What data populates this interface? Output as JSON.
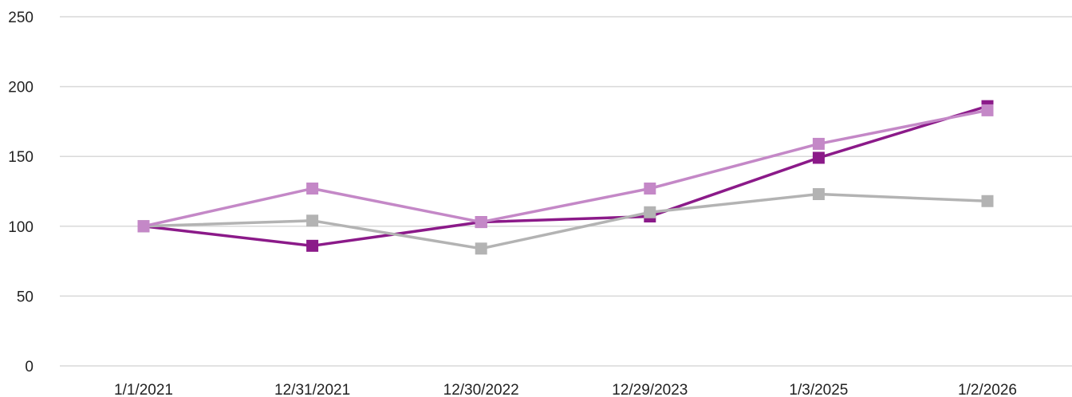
{
  "chart_data": {
    "type": "line",
    "title": "",
    "xlabel": "",
    "ylabel": "",
    "categories": [
      "1/1/2021",
      "12/31/2021",
      "12/30/2022",
      "12/29/2023",
      "1/3/2025",
      "1/2/2026"
    ],
    "y_ticks": [
      "0",
      "50",
      "100",
      "150",
      "200",
      "250"
    ],
    "ylim": [
      0,
      250
    ],
    "grid": true,
    "legend": "none",
    "marker": "square",
    "series": [
      {
        "color": "#8B1A89",
        "values": [
          100,
          86,
          103,
          107,
          149,
          186
        ]
      },
      {
        "color": "#C488C7",
        "values": [
          100,
          127,
          103,
          127,
          159,
          183
        ]
      },
      {
        "color": "#B3B3B3",
        "values": [
          100,
          104,
          84,
          110,
          123,
          118
        ]
      }
    ],
    "draw_order": [
      0,
      2,
      1
    ]
  }
}
